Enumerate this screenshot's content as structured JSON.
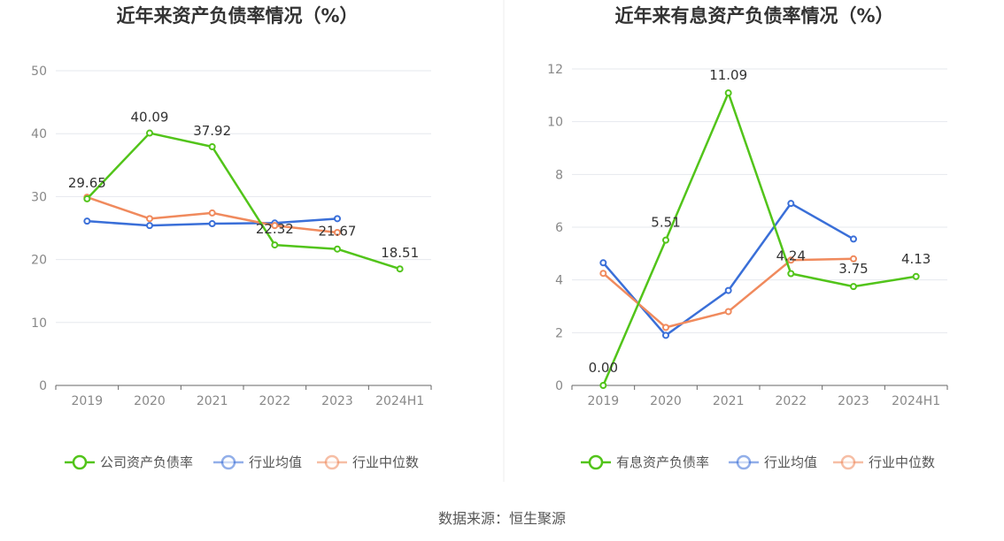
{
  "source": "数据来源：恒生聚源",
  "colors": {
    "company": "#52c41a",
    "industry_avg": "#3a6fd8",
    "industry_median": "#f08a5d"
  },
  "chart_data": [
    {
      "type": "line",
      "title": "近年来资产负债率情况（%）",
      "categories": [
        "2019",
        "2020",
        "2021",
        "2022",
        "2023",
        "2024H1"
      ],
      "ylim": [
        0,
        50
      ],
      "yticks": [
        0,
        10,
        20,
        30,
        40,
        50
      ],
      "grid": true,
      "legend_position": "bottom",
      "series": [
        {
          "name": "公司资产负债率",
          "color": "#52c41a",
          "values": [
            29.65,
            40.09,
            37.92,
            22.32,
            21.67,
            18.51
          ],
          "labels": [
            "29.65",
            "40.09",
            "37.92",
            "22.32",
            "21.67",
            "18.51"
          ]
        },
        {
          "name": "行业均值",
          "color": "#3a6fd8",
          "values": [
            26.1,
            25.4,
            25.7,
            25.8,
            26.5,
            null
          ]
        },
        {
          "name": "行业中位数",
          "color": "#f08a5d",
          "values": [
            29.9,
            26.5,
            27.4,
            25.4,
            24.3,
            null
          ]
        }
      ]
    },
    {
      "type": "line",
      "title": "近年来有息资产负债率情况（%）",
      "categories": [
        "2019",
        "2020",
        "2021",
        "2022",
        "2023",
        "2024H1"
      ],
      "ylim": [
        0,
        12
      ],
      "yticks": [
        0,
        2,
        4,
        6,
        8,
        10,
        12
      ],
      "grid": true,
      "legend_position": "bottom",
      "series": [
        {
          "name": "有息资产负债率",
          "color": "#52c41a",
          "values": [
            0.0,
            5.51,
            11.09,
            4.24,
            3.75,
            4.13
          ],
          "labels": [
            "0.00",
            "5.51",
            "11.09",
            "4.24",
            "3.75",
            "4.13"
          ]
        },
        {
          "name": "行业均值",
          "color": "#3a6fd8",
          "values": [
            4.65,
            1.9,
            3.6,
            6.9,
            5.55,
            null
          ]
        },
        {
          "name": "行业中位数",
          "color": "#f08a5d",
          "values": [
            4.25,
            2.2,
            2.8,
            4.75,
            4.8,
            null
          ]
        }
      ]
    }
  ]
}
